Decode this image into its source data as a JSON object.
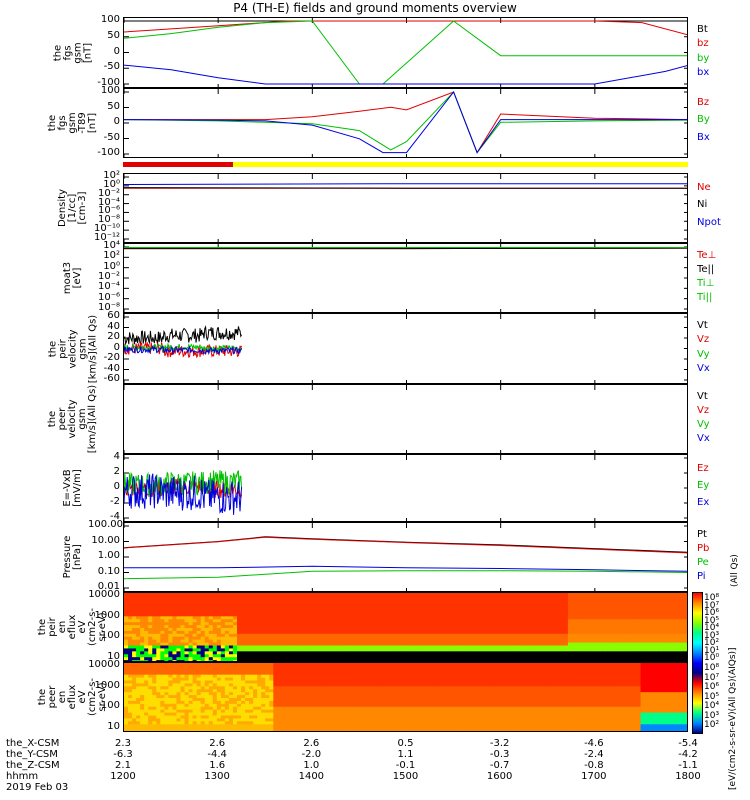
{
  "title": "P4 (TH-E) fields and ground moments overview",
  "panels": [
    {
      "id": "fgs-gsm",
      "ylabel_lines": [
        "the",
        "fgs",
        "gsm",
        "[nT]"
      ],
      "ticks": [
        "100",
        "50",
        "0",
        "-50",
        "-100"
      ],
      "legend": [
        {
          "label": "Bt",
          "color": "#000000"
        },
        {
          "label": "bz",
          "color": "#e00000"
        },
        {
          "label": "by",
          "color": "#00c000"
        },
        {
          "label": "bx",
          "color": "#0000e0"
        }
      ]
    },
    {
      "id": "fgs-gsm-t89",
      "ylabel_lines": [
        "the",
        "fgs",
        "gsm",
        "-T89",
        "[nT]"
      ],
      "ticks": [
        "100",
        "50",
        "0",
        "-50",
        "-100"
      ],
      "legend": [
        {
          "label": "Bz",
          "color": "#e00000"
        },
        {
          "label": "By",
          "color": "#00c000"
        },
        {
          "label": "Bx",
          "color": "#0000e0"
        }
      ]
    },
    {
      "id": "density",
      "ylabel_lines": [
        "Density",
        "[1/cc]",
        "[cm-3]"
      ],
      "ticks": [
        "10²",
        "10⁰",
        "10⁻²",
        "10⁻⁴",
        "10⁻⁶",
        "10⁻⁸",
        "10⁻¹⁰",
        "10⁻¹²"
      ],
      "legend": [
        {
          "label": "Ne",
          "color": "#e00000"
        },
        {
          "label": "Ni",
          "color": "#000000"
        },
        {
          "label": "Npot",
          "color": "#0000e0"
        }
      ]
    },
    {
      "id": "temperature",
      "ylabel_lines": [
        "moat3",
        "[eV]"
      ],
      "ticks": [
        "10⁴",
        "10²",
        "10⁰",
        "10⁻²",
        "10⁻⁴",
        "10⁻⁶",
        "10⁻⁸"
      ],
      "legend": [
        {
          "label": "Te⊥",
          "color": "#e00000"
        },
        {
          "label": "Te||",
          "color": "#000000"
        },
        {
          "label": "Ti⊥",
          "color": "#00c000"
        },
        {
          "label": "Ti||",
          "color": "#00c000"
        }
      ]
    },
    {
      "id": "peir-velocity",
      "ylabel_lines": [
        "the",
        "peir",
        "velocity",
        "gsm",
        "[km/s](All Qs)"
      ],
      "ticks": [
        "60",
        "40",
        "20",
        "0",
        "-20",
        "-40",
        "-60"
      ],
      "legend": [
        {
          "label": "Vt",
          "color": "#000000"
        },
        {
          "label": "Vz",
          "color": "#e00000"
        },
        {
          "label": "Vy",
          "color": "#00c000"
        },
        {
          "label": "Vx",
          "color": "#0000e0"
        }
      ]
    },
    {
      "id": "peer-velocity",
      "ylabel_lines": [
        "the",
        "peer",
        "velocity",
        "gsm",
        "[km/s](All Qs)"
      ],
      "ticks": [],
      "legend": [
        {
          "label": "Vt",
          "color": "#000000"
        },
        {
          "label": "Vz",
          "color": "#e00000"
        },
        {
          "label": "Vy",
          "color": "#00c000"
        },
        {
          "label": "Vx",
          "color": "#0000e0"
        }
      ]
    },
    {
      "id": "efield",
      "ylabel_lines": [
        "E=-VxB",
        "[mV/m]"
      ],
      "ticks": [
        "4",
        "2",
        "0",
        "-2",
        "-4"
      ],
      "legend": [
        {
          "label": "Ez",
          "color": "#e00000"
        },
        {
          "label": "Ey",
          "color": "#00c000"
        },
        {
          "label": "Ex",
          "color": "#0000e0"
        }
      ]
    },
    {
      "id": "pressure",
      "ylabel_lines": [
        "Pressure",
        "[nPa]"
      ],
      "ticks": [
        "100.00",
        "10.00",
        "1.00",
        "0.10",
        "0.01"
      ],
      "legend": [
        {
          "label": "Pt",
          "color": "#000000"
        },
        {
          "label": "Pb",
          "color": "#e00000"
        },
        {
          "label": "Pe",
          "color": "#00c000"
        },
        {
          "label": "Pi",
          "color": "#0000e0"
        }
      ],
      "legend_note": "(All Qs)"
    },
    {
      "id": "peir-en-eflux",
      "ylabel_lines": [
        "the",
        "peir",
        "en",
        "eflux",
        "eV",
        "(cm2-s-",
        "sr-eV)"
      ],
      "ticks": [
        "10000",
        "1000",
        "100",
        "10"
      ]
    },
    {
      "id": "peer-en-eflux",
      "ylabel_lines": [
        "the",
        "peer",
        "en",
        "eflux",
        "eV",
        "(cm2-s-",
        "sr-eV)"
      ],
      "ticks": [
        "10000",
        "1000",
        "100",
        "10"
      ]
    }
  ],
  "colorbar": {
    "ticks_top": [
      "10⁸",
      "10⁷",
      "10⁶",
      "10⁵",
      "10⁴",
      "10³",
      "10²",
      "10¹",
      "10⁰"
    ],
    "ticks_bottom": [
      "10⁸",
      "10⁷",
      "10⁶",
      "10⁵",
      "10⁴",
      "10³",
      "10²"
    ],
    "unit_top": "[eV/(cm2-s-sr-eV)(All Qs)]",
    "unit_bottom": "[eV/(cm2-s-sr-eV)]",
    "unit_combined": "[eV/(cm2-s-sr-eV)(All Qs)(AIQs)]"
  },
  "ephemeris": {
    "labels": [
      "the_X-CSM",
      "the_Y-CSM",
      "the_Z-CSM",
      "hhmm",
      "2019 Feb 03"
    ],
    "columns": [
      {
        "x": "2.3",
        "y": "-6.3",
        "z": "2.1",
        "t": "1200"
      },
      {
        "x": "2.6",
        "y": "-4.4",
        "z": "1.6",
        "t": "1300"
      },
      {
        "x": "2.6",
        "y": "-2.0",
        "z": "1.0",
        "t": "1400"
      },
      {
        "x": "0.5",
        "y": "1.1",
        "z": "-0.1",
        "t": "1500"
      },
      {
        "x": "-3.2",
        "y": "-0.3",
        "z": "-0.7",
        "t": "1600"
      },
      {
        "x": "-4.6",
        "y": "-2.4",
        "z": "-0.8",
        "t": "1700"
      },
      {
        "x": "-5.4",
        "y": "-4.2",
        "z": "-1.1",
        "t": "1800"
      }
    ]
  },
  "chart_data": {
    "type": "line",
    "x_label": "hhmm",
    "x_range": [
      "1200",
      "1800"
    ],
    "x_ticks": [
      "1200",
      "1300",
      "1400",
      "1500",
      "1600",
      "1700",
      "1800"
    ],
    "panels": [
      {
        "name": "the fgs gsm",
        "unit": "nT",
        "ylim": [
          -100,
          100
        ],
        "series": [
          {
            "name": "Bt",
            "x": [
              1200,
              1230,
              1300,
              1330,
              1345,
              1430,
              1500,
              1530,
              1600,
              1645,
              1700,
              1730,
              1800
            ],
            "y": [
              100,
              100,
              100,
              100,
              100,
              100,
              100,
              100,
              100,
              100,
              100,
              100,
              100
            ]
          },
          {
            "name": "bz",
            "x": [
              1200,
              1230,
              1300,
              1330,
              1345,
              1400,
              1500,
              1600,
              1700,
              1730,
              1800
            ],
            "y": [
              65,
              75,
              85,
              95,
              100,
              100,
              100,
              100,
              100,
              95,
              55
            ]
          },
          {
            "name": "by",
            "x": [
              1200,
              1230,
              1300,
              1330,
              1400,
              1430,
              1445,
              1530,
              1600,
              1700,
              1800
            ],
            "y": [
              45,
              60,
              80,
              95,
              100,
              -100,
              -100,
              100,
              -10,
              -10,
              -10
            ]
          },
          {
            "name": "bx",
            "x": [
              1200,
              1230,
              1300,
              1330,
              1400,
              1500,
              1530,
              1600,
              1700,
              1745,
              1800
            ],
            "y": [
              -40,
              -55,
              -80,
              -100,
              -100,
              -100,
              -100,
              -100,
              -100,
              -60,
              -40
            ]
          }
        ]
      },
      {
        "name": "the fgs gsm -T89",
        "unit": "nT",
        "ylim": [
          -125,
          100
        ],
        "series": [
          {
            "name": "Bz",
            "x": [
              1200,
              1300,
              1330,
              1400,
              1430,
              1450,
              1500,
              1530,
              1545,
              1600,
              1700,
              1800
            ],
            "y": [
              0,
              0,
              0,
              10,
              30,
              45,
              35,
              100,
              -120,
              20,
              5,
              0
            ]
          },
          {
            "name": "By",
            "x": [
              1200,
              1300,
              1330,
              1400,
              1430,
              1450,
              1500,
              1530,
              1545,
              1600,
              1700,
              1800
            ],
            "y": [
              0,
              -5,
              -10,
              -15,
              -40,
              -110,
              -80,
              100,
              -120,
              -10,
              -5,
              -2
            ]
          },
          {
            "name": "Bx",
            "x": [
              1200,
              1300,
              1330,
              1400,
              1430,
              1445,
              1500,
              1530,
              1545,
              1600,
              1700,
              1800
            ],
            "y": [
              0,
              -2,
              -5,
              -20,
              -70,
              -120,
              -120,
              100,
              -120,
              0,
              0,
              0
            ]
          }
        ]
      },
      {
        "name": "Density",
        "unit": "1/cc",
        "scale": "log",
        "ylim": [
          1e-12,
          100.0
        ],
        "series": [
          {
            "name": "Ne",
            "x": [
              1200,
              1500,
              1800
            ],
            "y": [
              0.3,
              0.3,
              0.3
            ]
          },
          {
            "name": "Ni",
            "x": [
              1200,
              1500,
              1800
            ],
            "y": [
              0.4,
              0.3,
              0.3
            ]
          },
          {
            "name": "Npot",
            "x": [
              1200,
              1500,
              1800
            ],
            "y": [
              2,
              3,
              3
            ]
          }
        ]
      },
      {
        "name": "moat3",
        "unit": "eV",
        "scale": "log",
        "ylim": [
          1e-08,
          10000.0
        ],
        "series": [
          {
            "name": "Te⊥",
            "x": [
              1200,
              1500,
              1800
            ],
            "y": [
              5000,
              5000,
              6000
            ]
          },
          {
            "name": "Te||",
            "x": [
              1200,
              1500,
              1800
            ],
            "y": [
              5000,
              5000,
              6000
            ]
          },
          {
            "name": "Ti⊥",
            "x": [
              1200,
              1300,
              1800
            ],
            "y": [
              8000,
              8000,
              8000
            ]
          },
          {
            "name": "Ti||",
            "x": [
              1200,
              1300,
              1800
            ],
            "y": [
              8000,
              8000,
              8000
            ]
          }
        ]
      },
      {
        "name": "the peir velocity gsm",
        "unit": "km/s",
        "ylim": [
          -60,
          60
        ],
        "series": [
          {
            "name": "Vt",
            "x": [
              1200,
              1230,
              1300,
              1315
            ],
            "y": [
              20,
              25,
              30,
              25
            ]
          },
          {
            "name": "Vz",
            "x": [
              1200,
              1230,
              1300,
              1315
            ],
            "y": [
              0,
              -5,
              -5,
              0
            ]
          },
          {
            "name": "Vy",
            "x": [
              1200,
              1230,
              1300,
              1315
            ],
            "y": [
              2,
              3,
              0,
              2
            ]
          },
          {
            "name": "Vx",
            "x": [
              1200,
              1230,
              1300,
              1315
            ],
            "y": [
              -2,
              -3,
              -4,
              -2
            ]
          }
        ]
      },
      {
        "name": "E=-VxB",
        "unit": "mV/m",
        "ylim": [
          -5,
          5
        ],
        "series": [
          {
            "name": "Ez",
            "x": [
              1200,
              1230,
              1300,
              1315
            ],
            "y": [
              0,
              0.2,
              -0.2,
              0
            ]
          },
          {
            "name": "Ey",
            "x": [
              1200,
              1230,
              1300,
              1315
            ],
            "y": [
              0.5,
              0.8,
              1.0,
              0.5
            ]
          },
          {
            "name": "Ex",
            "x": [
              1200,
              1230,
              1300,
              1315
            ],
            "y": [
              -0.5,
              -0.8,
              -1.5,
              -1.0
            ]
          }
        ]
      },
      {
        "name": "Pressure",
        "unit": "nPa",
        "scale": "log",
        "ylim": [
          0.01,
          100
        ],
        "series": [
          {
            "name": "Pt",
            "x": [
              1200,
              1300,
              1330,
              1400,
              1500,
              1600,
              1700,
              1800
            ],
            "y": [
              4,
              10,
              20,
              15,
              9,
              6,
              3.5,
              2
            ]
          },
          {
            "name": "Pb",
            "x": [
              1200,
              1300,
              1330,
              1400,
              1500,
              1600,
              1700,
              1800
            ],
            "y": [
              3.8,
              9.5,
              19,
              14,
              8.5,
              5.5,
              3.2,
              1.8
            ]
          },
          {
            "name": "Pe",
            "x": [
              1200,
              1300,
              1400,
              1500,
              1600,
              1700,
              1800
            ],
            "y": [
              0.04,
              0.05,
              0.12,
              0.13,
              0.13,
              0.12,
              0.1
            ]
          },
          {
            "name": "Pi",
            "x": [
              1200,
              1300,
              1400,
              1500,
              1600,
              1700,
              1800
            ],
            "y": [
              0.2,
              0.2,
              0.25,
              0.2,
              0.18,
              0.15,
              0.12
            ]
          }
        ]
      }
    ]
  }
}
